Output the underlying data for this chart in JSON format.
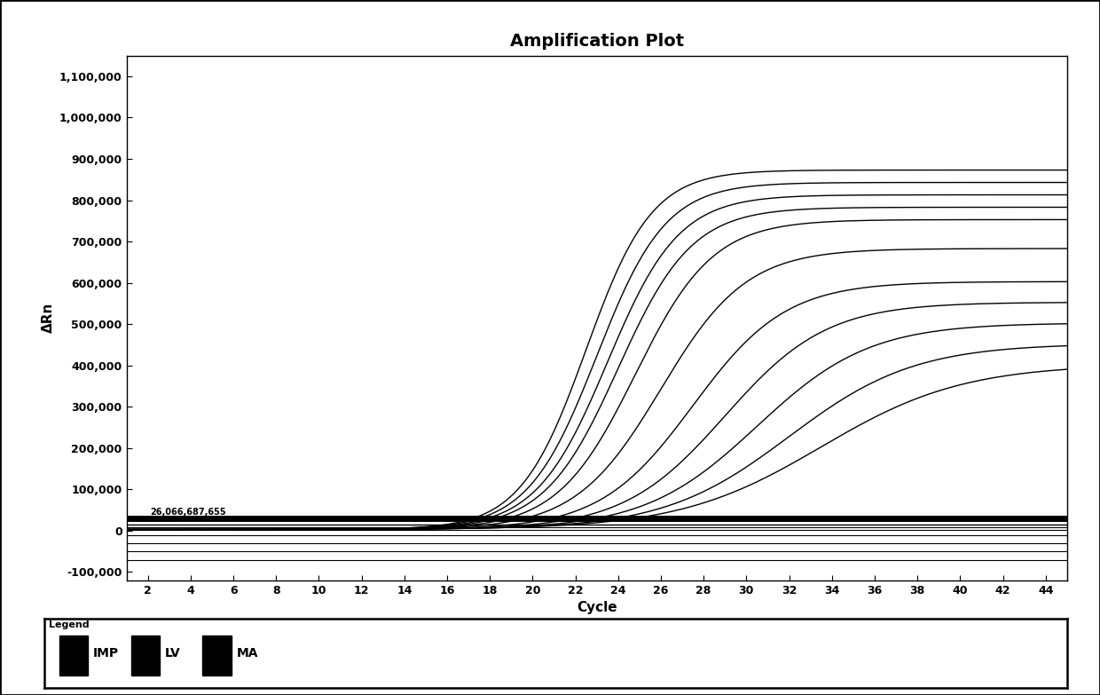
{
  "title": "Amplification Plot",
  "xlabel": "Cycle",
  "ylabel": "ΔRn",
  "xlim": [
    1,
    45
  ],
  "ylim": [
    -120000,
    1150000
  ],
  "xticks": [
    2,
    4,
    6,
    8,
    10,
    12,
    14,
    16,
    18,
    20,
    22,
    24,
    26,
    28,
    30,
    32,
    34,
    36,
    38,
    40,
    42,
    44
  ],
  "yticks": [
    -100000,
    0,
    100000,
    200000,
    300000,
    400000,
    500000,
    600000,
    700000,
    800000,
    900000,
    1000000,
    1100000
  ],
  "ytick_labels": [
    "-100,000",
    "0",
    "100,000",
    "200,000",
    "300,000",
    "400,000",
    "500,000",
    "600,000",
    "700,000",
    "800,000",
    "900,000",
    "1,000,000",
    "1,100,000"
  ],
  "background_color": "#ffffff",
  "curve_color": "#000000",
  "annotation_text": "26,066,687,655",
  "legend_items": [
    "IMP",
    "LV",
    "MA"
  ],
  "legend_title": "Legend",
  "sigmoidal_curves": [
    {
      "L": 870000,
      "k": 0.65,
      "x0": 22.5,
      "baseline": 3000
    },
    {
      "L": 840000,
      "k": 0.62,
      "x0": 23.0,
      "baseline": 3000
    },
    {
      "L": 810000,
      "k": 0.6,
      "x0": 23.5,
      "baseline": 3000
    },
    {
      "L": 780000,
      "k": 0.58,
      "x0": 24.0,
      "baseline": 3000
    },
    {
      "L": 750000,
      "k": 0.55,
      "x0": 24.8,
      "baseline": 3000
    },
    {
      "L": 680000,
      "k": 0.5,
      "x0": 26.0,
      "baseline": 3000
    },
    {
      "L": 600000,
      "k": 0.46,
      "x0": 27.5,
      "baseline": 3000
    },
    {
      "L": 550000,
      "k": 0.42,
      "x0": 29.0,
      "baseline": 3000
    },
    {
      "L": 500000,
      "k": 0.38,
      "x0": 30.5,
      "baseline": 3000
    },
    {
      "L": 450000,
      "k": 0.34,
      "x0": 32.0,
      "baseline": 3000
    },
    {
      "L": 400000,
      "k": 0.3,
      "x0": 33.5,
      "baseline": 3000
    }
  ],
  "thick_flat_value": 30000,
  "thin_flat_lines": [
    -10000,
    -30000,
    -50000,
    -70000
  ]
}
